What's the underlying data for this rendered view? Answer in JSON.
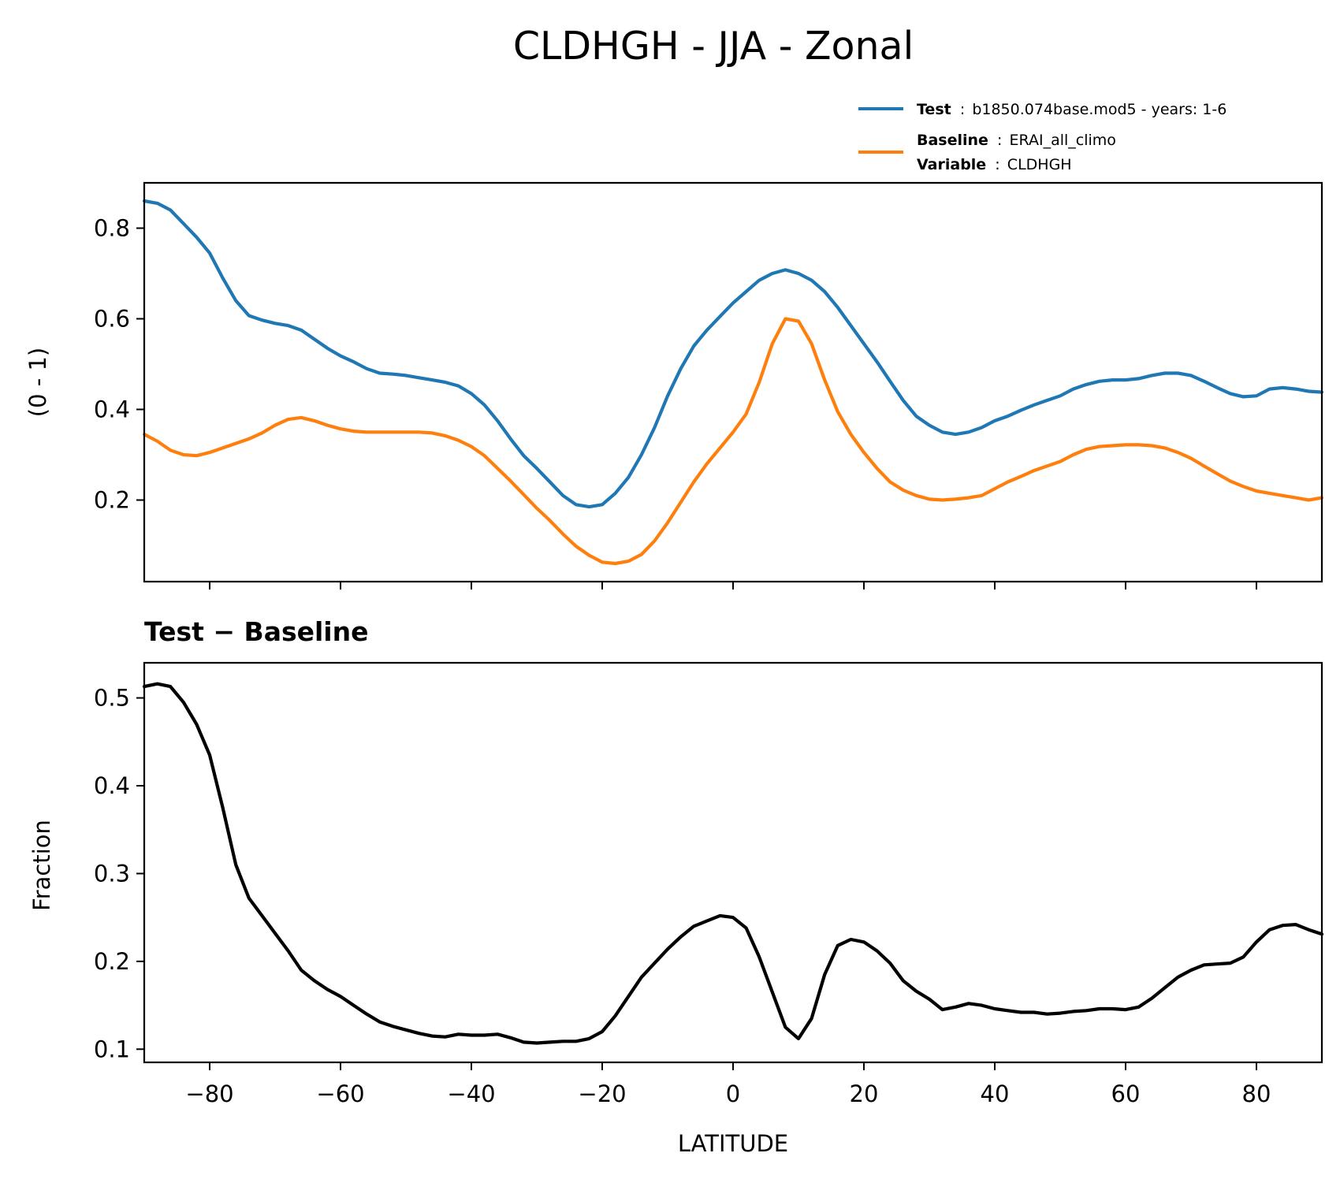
{
  "figure": {
    "title": "CLDHGH - JJA - Zonal"
  },
  "legend": {
    "test_key": "Test",
    "test_value": "b1850.074base.mod5 - years: 1-6",
    "baseline_key": "Baseline",
    "baseline_value": "ERAI_all_climo",
    "variable_key": "Variable",
    "variable_value": "CLDHGH",
    "separator": ":"
  },
  "colors": {
    "test": "#1f77b4",
    "baseline": "#ff7f0e",
    "difference": "#000000"
  },
  "chart_data": [
    {
      "type": "line",
      "ylabel": "(0 - 1)",
      "xlim": [
        -90,
        90
      ],
      "ylim": [
        0.02,
        0.9
      ],
      "xticks": [
        -80,
        -60,
        -40,
        -20,
        0,
        20,
        40,
        60,
        80
      ],
      "yticks": [
        0.2,
        0.4,
        0.6,
        0.8
      ],
      "ytick_labels": [
        "0.2",
        "0.4",
        "0.6",
        "0.8"
      ],
      "x": [
        -90,
        -88,
        -86,
        -84,
        -82,
        -80,
        -78,
        -76,
        -74,
        -72,
        -70,
        -68,
        -66,
        -64,
        -62,
        -60,
        -58,
        -56,
        -54,
        -52,
        -50,
        -48,
        -46,
        -44,
        -42,
        -40,
        -38,
        -36,
        -34,
        -32,
        -30,
        -28,
        -26,
        -24,
        -22,
        -20,
        -18,
        -16,
        -14,
        -12,
        -10,
        -8,
        -6,
        -4,
        -2,
        0,
        2,
        4,
        6,
        8,
        10,
        12,
        14,
        16,
        18,
        20,
        22,
        24,
        26,
        28,
        30,
        32,
        34,
        36,
        38,
        40,
        42,
        44,
        46,
        48,
        50,
        52,
        54,
        56,
        58,
        60,
        62,
        64,
        66,
        68,
        70,
        72,
        74,
        76,
        78,
        80,
        82,
        84,
        86,
        88,
        90
      ],
      "series": [
        {
          "name": "Test",
          "values": [
            0.86,
            0.855,
            0.84,
            0.81,
            0.78,
            0.745,
            0.69,
            0.64,
            0.607,
            0.597,
            0.59,
            0.585,
            0.575,
            0.555,
            0.535,
            0.518,
            0.505,
            0.49,
            0.48,
            0.478,
            0.475,
            0.47,
            0.465,
            0.46,
            0.452,
            0.435,
            0.41,
            0.375,
            0.335,
            0.298,
            0.27,
            0.24,
            0.21,
            0.19,
            0.185,
            0.19,
            0.215,
            0.25,
            0.3,
            0.36,
            0.43,
            0.49,
            0.54,
            0.575,
            0.605,
            0.635,
            0.66,
            0.685,
            0.7,
            0.708,
            0.7,
            0.685,
            0.66,
            0.625,
            0.585,
            0.545,
            0.505,
            0.462,
            0.42,
            0.385,
            0.365,
            0.35,
            0.345,
            0.35,
            0.36,
            0.375,
            0.385,
            0.398,
            0.41,
            0.42,
            0.43,
            0.445,
            0.455,
            0.462,
            0.465,
            0.465,
            0.468,
            0.475,
            0.48,
            0.48,
            0.475,
            0.462,
            0.448,
            0.435,
            0.428,
            0.43,
            0.445,
            0.448,
            0.445,
            0.44,
            0.438
          ]
        },
        {
          "name": "Baseline",
          "values": [
            0.345,
            0.33,
            0.31,
            0.3,
            0.298,
            0.305,
            0.315,
            0.325,
            0.335,
            0.348,
            0.365,
            0.378,
            0.382,
            0.375,
            0.365,
            0.357,
            0.352,
            0.35,
            0.35,
            0.35,
            0.35,
            0.35,
            0.348,
            0.342,
            0.332,
            0.318,
            0.298,
            0.27,
            0.242,
            0.212,
            0.182,
            0.155,
            0.125,
            0.098,
            0.078,
            0.063,
            0.06,
            0.065,
            0.08,
            0.11,
            0.15,
            0.195,
            0.24,
            0.28,
            0.315,
            0.35,
            0.39,
            0.46,
            0.545,
            0.6,
            0.595,
            0.545,
            0.465,
            0.395,
            0.345,
            0.305,
            0.27,
            0.24,
            0.222,
            0.21,
            0.202,
            0.2,
            0.202,
            0.205,
            0.21,
            0.225,
            0.24,
            0.252,
            0.265,
            0.275,
            0.285,
            0.3,
            0.312,
            0.318,
            0.32,
            0.322,
            0.322,
            0.32,
            0.315,
            0.305,
            0.292,
            0.275,
            0.258,
            0.242,
            0.23,
            0.22,
            0.215,
            0.21,
            0.205,
            0.2,
            0.205
          ]
        }
      ]
    },
    {
      "type": "line",
      "title": "Test − Baseline",
      "xlabel": "LATITUDE",
      "ylabel": "Fraction",
      "xlim": [
        -90,
        90
      ],
      "ylim": [
        0.085,
        0.54
      ],
      "xticks": [
        -80,
        -60,
        -40,
        -20,
        0,
        20,
        40,
        60,
        80
      ],
      "xtick_labels": [
        "−80",
        "−60",
        "−40",
        "−20",
        "0",
        "20",
        "40",
        "60",
        "80"
      ],
      "yticks": [
        0.1,
        0.2,
        0.3,
        0.4,
        0.5
      ],
      "ytick_labels": [
        "0.1",
        "0.2",
        "0.3",
        "0.4",
        "0.5"
      ],
      "x": [
        -90,
        -88,
        -86,
        -84,
        -82,
        -80,
        -78,
        -76,
        -74,
        -72,
        -70,
        -68,
        -66,
        -64,
        -62,
        -60,
        -58,
        -56,
        -54,
        -52,
        -50,
        -48,
        -46,
        -44,
        -42,
        -40,
        -38,
        -36,
        -34,
        -32,
        -30,
        -28,
        -26,
        -24,
        -22,
        -20,
        -18,
        -16,
        -14,
        -12,
        -10,
        -8,
        -6,
        -4,
        -2,
        0,
        2,
        4,
        6,
        8,
        10,
        12,
        14,
        16,
        18,
        20,
        22,
        24,
        26,
        28,
        30,
        32,
        34,
        36,
        38,
        40,
        42,
        44,
        46,
        48,
        50,
        52,
        54,
        56,
        58,
        60,
        62,
        64,
        66,
        68,
        70,
        72,
        74,
        76,
        78,
        80,
        82,
        84,
        86,
        88,
        90
      ],
      "series": [
        {
          "name": "Test − Baseline",
          "values": [
            0.513,
            0.516,
            0.513,
            0.495,
            0.47,
            0.435,
            0.375,
            0.31,
            0.272,
            0.252,
            0.232,
            0.212,
            0.19,
            0.178,
            0.168,
            0.16,
            0.15,
            0.14,
            0.131,
            0.126,
            0.122,
            0.118,
            0.115,
            0.114,
            0.117,
            0.116,
            0.116,
            0.117,
            0.113,
            0.108,
            0.107,
            0.108,
            0.109,
            0.109,
            0.112,
            0.12,
            0.138,
            0.16,
            0.182,
            0.198,
            0.214,
            0.228,
            0.24,
            0.246,
            0.252,
            0.25,
            0.238,
            0.205,
            0.165,
            0.125,
            0.112,
            0.135,
            0.185,
            0.218,
            0.225,
            0.222,
            0.212,
            0.198,
            0.178,
            0.166,
            0.157,
            0.145,
            0.148,
            0.152,
            0.15,
            0.146,
            0.144,
            0.142,
            0.142,
            0.14,
            0.141,
            0.143,
            0.144,
            0.146,
            0.146,
            0.145,
            0.148,
            0.158,
            0.17,
            0.182,
            0.19,
            0.196,
            0.197,
            0.198,
            0.205,
            0.222,
            0.236,
            0.241,
            0.242,
            0.236,
            0.231
          ]
        }
      ]
    }
  ]
}
